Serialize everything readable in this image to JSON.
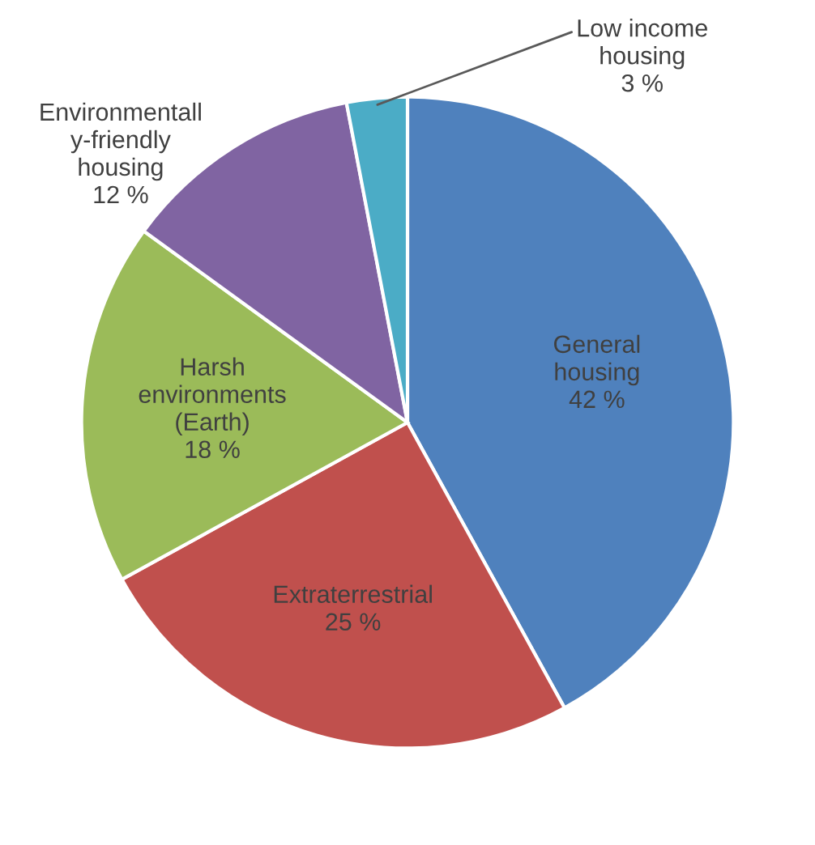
{
  "chart_data": {
    "type": "pie",
    "categories": [
      "General\nhousing",
      "Extraterrestrial",
      "Harsh\nenvironments\n(Earth)",
      "Environmentall\ny-friendly\nhousing",
      "Low income\nhousing"
    ],
    "values": [
      42,
      25,
      18,
      12,
      3
    ],
    "value_labels": [
      "42 %",
      "25 %",
      "18 %",
      "12 %",
      "3 %"
    ],
    "colors": [
      "#4f81bd",
      "#c0504d",
      "#9bbb59",
      "#8064a2",
      "#4bacc6"
    ]
  }
}
